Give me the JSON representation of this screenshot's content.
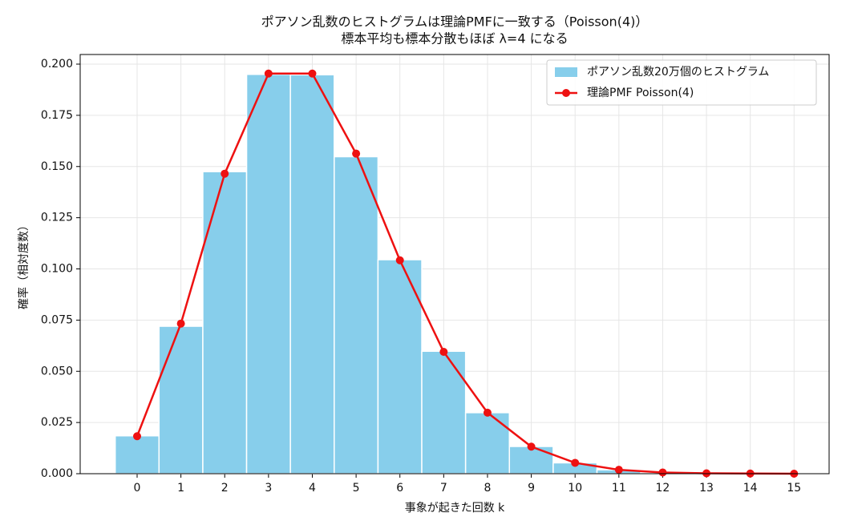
{
  "chart_data": {
    "type": "histogram",
    "title": "ポアソン乱数のヒストグラムは理論PMFに一致する（Poisson(4)）",
    "subtitle": "標本平均も標本分散もほぼ λ=4 になる",
    "x_label": "事象が起きた回数 k",
    "y_label": "確率（相対度数）",
    "bins": [
      -0.5,
      0.5,
      1.5,
      2.5,
      3.5,
      4.5,
      5.5,
      6.5,
      7.5,
      8.5,
      9.5,
      10.5,
      11.5,
      12.5,
      13.5,
      14.5,
      15.5
    ],
    "series": [
      {
        "name": "ポアソン乱数20万個のヒストグラム",
        "type": "histogram",
        "color": "#87ceeb",
        "values": [
          0.0185,
          0.072,
          0.1475,
          0.195,
          0.1948,
          0.1548,
          0.1045,
          0.0598,
          0.0298,
          0.0133,
          0.0053,
          0.0019,
          0.0006,
          0.0002,
          0.0001,
          0
        ]
      },
      {
        "name": "理論PMF Poisson(4)",
        "type": "line",
        "color": "#ee1111",
        "x": [
          0,
          1,
          2,
          3,
          4,
          5,
          6,
          7,
          8,
          9,
          10,
          11,
          12,
          13,
          14,
          15
        ],
        "values": [
          0.0183,
          0.0733,
          0.1465,
          0.1954,
          0.1954,
          0.1563,
          0.1042,
          0.0595,
          0.0298,
          0.0132,
          0.0053,
          0.0019,
          0.0006,
          0.0002,
          0.0001,
          0
        ]
      }
    ],
    "xlim": [
      -1.3,
      15.8
    ],
    "ylim": [
      0,
      0.2047
    ],
    "xticks": [
      0,
      1,
      2,
      3,
      4,
      5,
      6,
      7,
      8,
      9,
      10,
      11,
      12,
      13,
      14,
      15
    ],
    "yticks": [
      {
        "value": 0,
        "label": "0.000"
      },
      {
        "value": 0.025,
        "label": "0.025"
      },
      {
        "value": 0.05,
        "label": "0.050"
      },
      {
        "value": 0.075,
        "label": "0.075"
      },
      {
        "value": 0.1,
        "label": "0.100"
      },
      {
        "value": 0.125,
        "label": "0.125"
      },
      {
        "value": 0.15,
        "label": "0.150"
      },
      {
        "value": 0.175,
        "label": "0.175"
      },
      {
        "value": 0.2,
        "label": "0.200"
      }
    ],
    "grid": true,
    "legend": "upper right"
  }
}
